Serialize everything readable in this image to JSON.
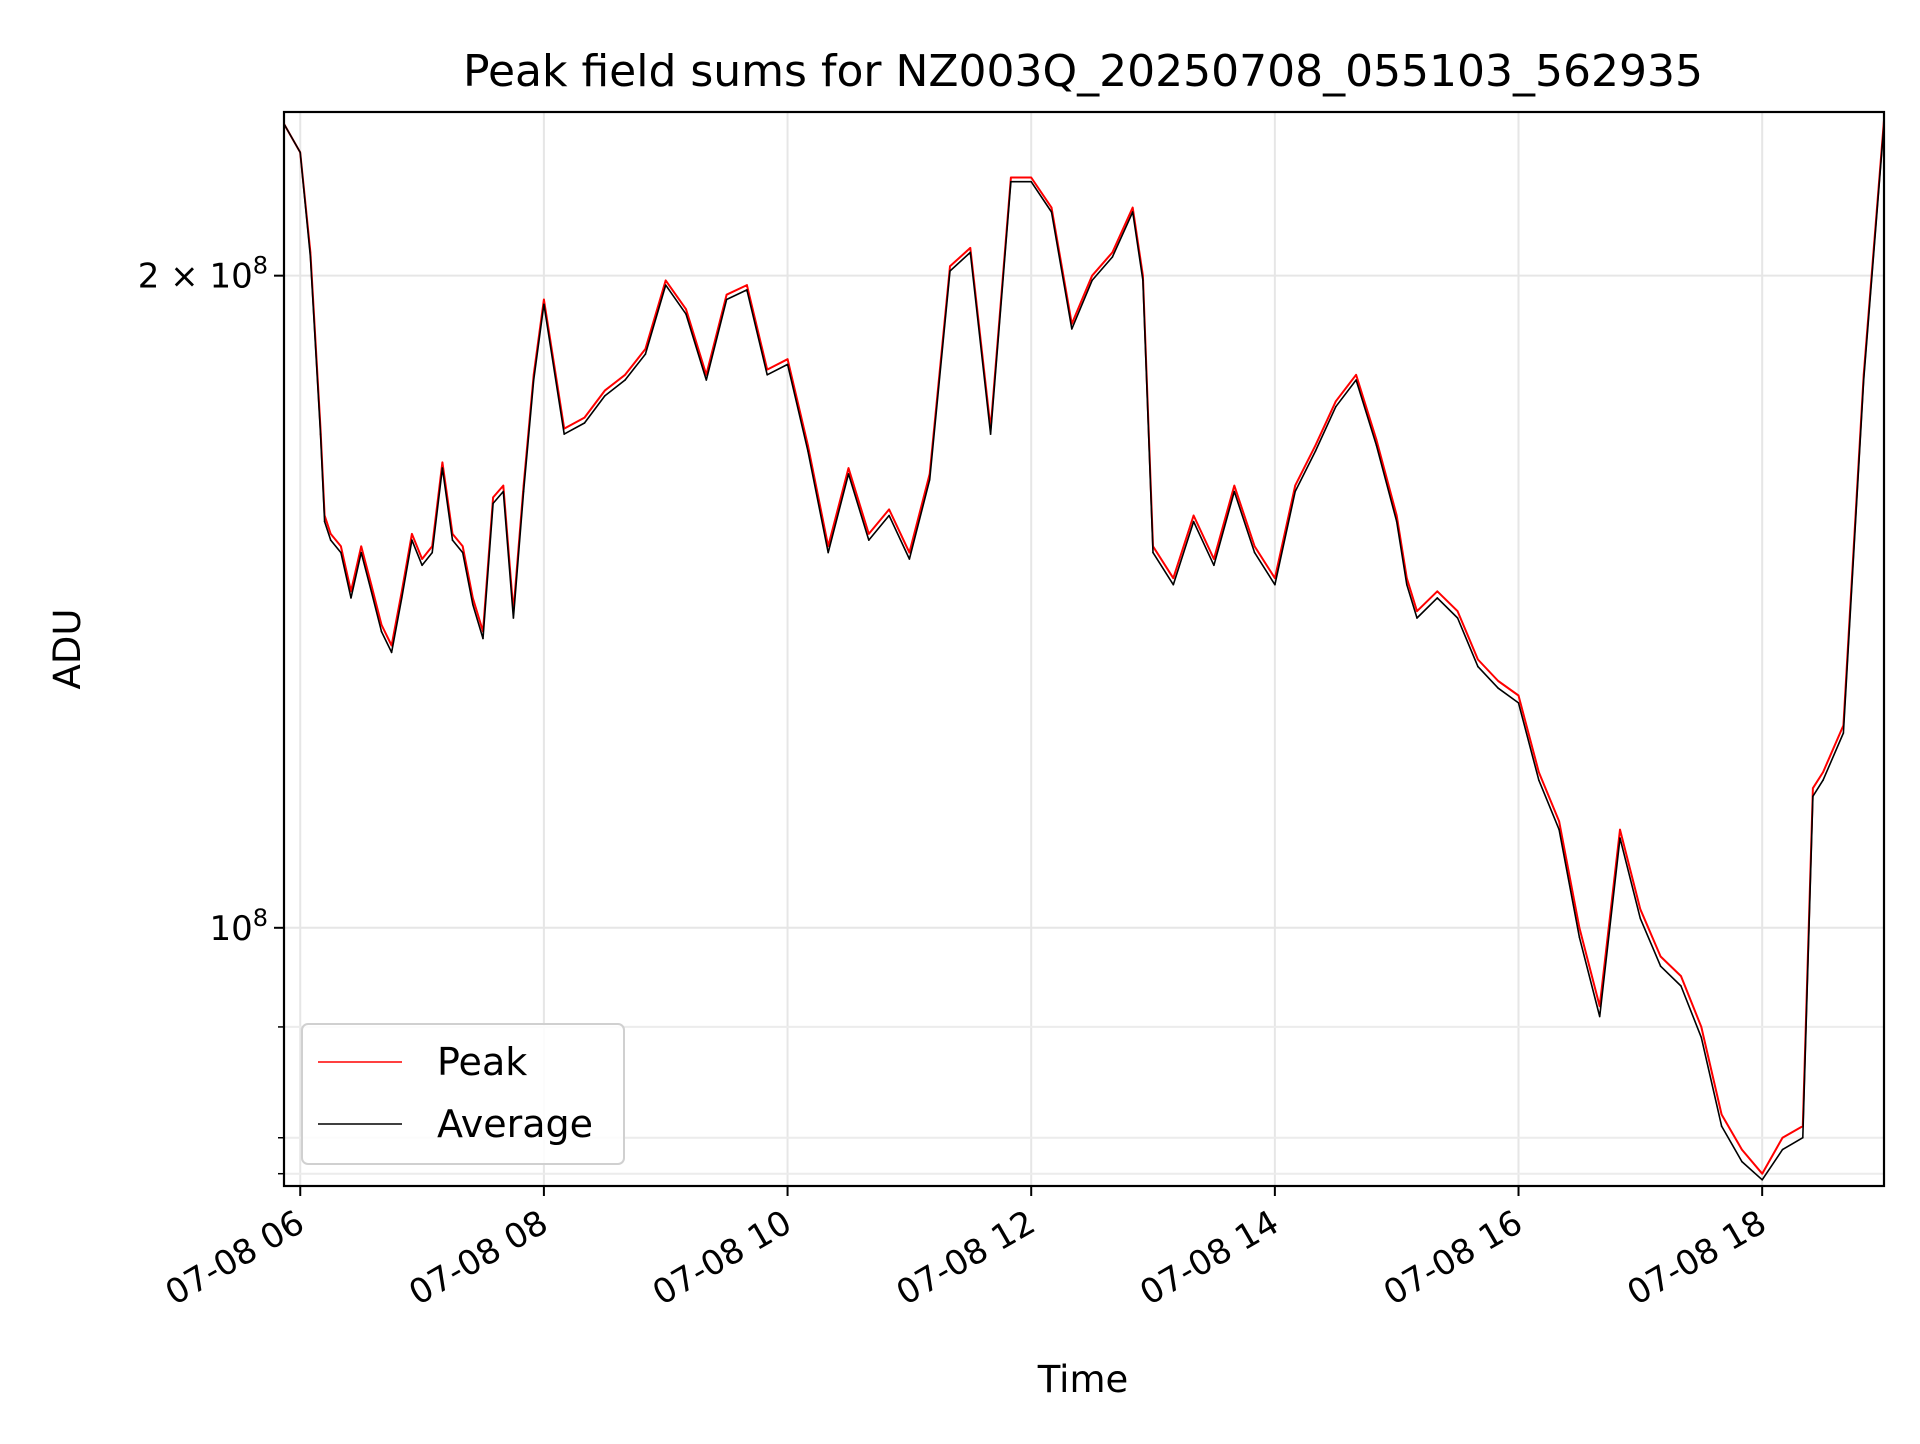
{
  "chart_data": {
    "type": "line",
    "title": "Peak field sums for NZ003Q_20250708_055103_562935",
    "xlabel": "Time",
    "ylabel": "ADU",
    "y_scale": "log",
    "ylim": [
      76000000,
      238000000
    ],
    "xlim": [
      "2025-07-08 05:52",
      "2025-07-08 19:00"
    ],
    "grid": true,
    "legend_position": "lower-left",
    "x_ticks": [
      {
        "value": "2025-07-08 06:00",
        "label": "07-08 06"
      },
      {
        "value": "2025-07-08 08:00",
        "label": "07-08 08"
      },
      {
        "value": "2025-07-08 10:00",
        "label": "07-08 10"
      },
      {
        "value": "2025-07-08 12:00",
        "label": "07-08 12"
      },
      {
        "value": "2025-07-08 14:00",
        "label": "07-08 14"
      },
      {
        "value": "2025-07-08 16:00",
        "label": "07-08 16"
      },
      {
        "value": "2025-07-08 18:00",
        "label": "07-08 18"
      }
    ],
    "y_ticks": [
      {
        "value": 100000000,
        "base": "10",
        "exp": "8"
      },
      {
        "value": 200000000,
        "base": "2 × 10",
        "exp": "8"
      }
    ],
    "y_minor_ticks": [
      77000000,
      80000000,
      90000000,
      300000000
    ],
    "x": [
      "2025-07-08 05:52",
      "2025-07-08 06:00",
      "2025-07-08 06:05",
      "2025-07-08 06:10",
      "2025-07-08 06:12",
      "2025-07-08 06:15",
      "2025-07-08 06:20",
      "2025-07-08 06:25",
      "2025-07-08 06:30",
      "2025-07-08 06:35",
      "2025-07-08 06:40",
      "2025-07-08 06:45",
      "2025-07-08 06:50",
      "2025-07-08 06:55",
      "2025-07-08 07:00",
      "2025-07-08 07:05",
      "2025-07-08 07:10",
      "2025-07-08 07:15",
      "2025-07-08 07:20",
      "2025-07-08 07:25",
      "2025-07-08 07:30",
      "2025-07-08 07:35",
      "2025-07-08 07:40",
      "2025-07-08 07:45",
      "2025-07-08 07:50",
      "2025-07-08 07:55",
      "2025-07-08 08:00",
      "2025-07-08 08:10",
      "2025-07-08 08:20",
      "2025-07-08 08:30",
      "2025-07-08 08:40",
      "2025-07-08 08:50",
      "2025-07-08 09:00",
      "2025-07-08 09:10",
      "2025-07-08 09:20",
      "2025-07-08 09:30",
      "2025-07-08 09:40",
      "2025-07-08 09:50",
      "2025-07-08 10:00",
      "2025-07-08 10:10",
      "2025-07-08 10:20",
      "2025-07-08 10:30",
      "2025-07-08 10:40",
      "2025-07-08 10:50",
      "2025-07-08 11:00",
      "2025-07-08 11:10",
      "2025-07-08 11:20",
      "2025-07-08 11:30",
      "2025-07-08 11:40",
      "2025-07-08 11:50",
      "2025-07-08 12:00",
      "2025-07-08 12:10",
      "2025-07-08 12:20",
      "2025-07-08 12:30",
      "2025-07-08 12:40",
      "2025-07-08 12:50",
      "2025-07-08 12:55",
      "2025-07-08 13:00",
      "2025-07-08 13:10",
      "2025-07-08 13:20",
      "2025-07-08 13:30",
      "2025-07-08 13:40",
      "2025-07-08 13:50",
      "2025-07-08 14:00",
      "2025-07-08 14:10",
      "2025-07-08 14:20",
      "2025-07-08 14:30",
      "2025-07-08 14:40",
      "2025-07-08 14:50",
      "2025-07-08 15:00",
      "2025-07-08 15:05",
      "2025-07-08 15:10",
      "2025-07-08 15:20",
      "2025-07-08 15:30",
      "2025-07-08 15:40",
      "2025-07-08 15:50",
      "2025-07-08 16:00",
      "2025-07-08 16:10",
      "2025-07-08 16:20",
      "2025-07-08 16:30",
      "2025-07-08 16:40",
      "2025-07-08 16:50",
      "2025-07-08 17:00",
      "2025-07-08 17:10",
      "2025-07-08 17:20",
      "2025-07-08 17:30",
      "2025-07-08 17:40",
      "2025-07-08 17:50",
      "2025-07-08 18:00",
      "2025-07-08 18:10",
      "2025-07-08 18:20",
      "2025-07-08 18:25",
      "2025-07-08 18:30",
      "2025-07-08 18:40",
      "2025-07-08 18:50",
      "2025-07-08 19:00"
    ],
    "series": [
      {
        "name": "Peak",
        "color": "#ff0000",
        "values": [
          235000000,
          228000000,
          205000000,
          170000000,
          155000000,
          152000000,
          150000000,
          143000000,
          150000000,
          144000000,
          138000000,
          135000000,
          143000000,
          152000000,
          148000000,
          150000000,
          164000000,
          152000000,
          150000000,
          142000000,
          137000000,
          158000000,
          160000000,
          140000000,
          160000000,
          180000000,
          195000000,
          170000000,
          172000000,
          177000000,
          180000000,
          185000000,
          199000000,
          193000000,
          180000000,
          196000000,
          198000000,
          181000000,
          183000000,
          167000000,
          150000000,
          163000000,
          152000000,
          156000000,
          149000000,
          162000000,
          202000000,
          206000000,
          170000000,
          222000000,
          222000000,
          215000000,
          190000000,
          200000000,
          205000000,
          215000000,
          200000000,
          150000000,
          145000000,
          155000000,
          148000000,
          160000000,
          150000000,
          145000000,
          160000000,
          167000000,
          175000000,
          180000000,
          168000000,
          155000000,
          145000000,
          140000000,
          143000000,
          140000000,
          133000000,
          130000000,
          128000000,
          118000000,
          112000000,
          100000000,
          92000000,
          111000000,
          102000000,
          97000000,
          95000000,
          90000000,
          82000000,
          79000000,
          77000000,
          80000000,
          81000000,
          116000000,
          118000000,
          124000000,
          180000000,
          236000000
        ]
      },
      {
        "name": "Average",
        "color": "#000000",
        "values": [
          235000000,
          228000000,
          204000000,
          169000000,
          154000000,
          151000000,
          149000000,
          142000000,
          149000000,
          143000000,
          137000000,
          134000000,
          142000000,
          151000000,
          147000000,
          149000000,
          163000000,
          151000000,
          149000000,
          141000000,
          136000000,
          157000000,
          159000000,
          139000000,
          159000000,
          179000000,
          194000000,
          169000000,
          171000000,
          176000000,
          179000000,
          184000000,
          198000000,
          192000000,
          179000000,
          195000000,
          197000000,
          180000000,
          182000000,
          166000000,
          149000000,
          162000000,
          151000000,
          155000000,
          148000000,
          161000000,
          201000000,
          205000000,
          169000000,
          221000000,
          221000000,
          214000000,
          189000000,
          199000000,
          204000000,
          214000000,
          199000000,
          149000000,
          144000000,
          154000000,
          147000000,
          159000000,
          149000000,
          144000000,
          159000000,
          166000000,
          174000000,
          179000000,
          167000000,
          154000000,
          144000000,
          139000000,
          142000000,
          139000000,
          132000000,
          129000000,
          127000000,
          117000000,
          111000000,
          99000000,
          91000000,
          110000000,
          101000000,
          96000000,
          94000000,
          89000000,
          81000000,
          78000000,
          76500000,
          79000000,
          80000000,
          115000000,
          117000000,
          123000000,
          179000000,
          235000000
        ]
      }
    ]
  }
}
